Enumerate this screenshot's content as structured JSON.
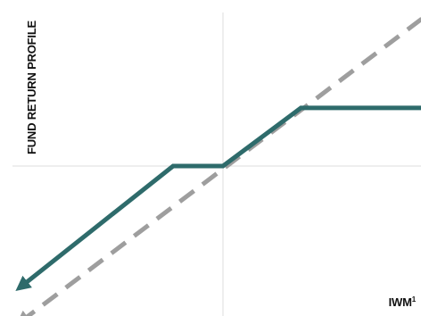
{
  "chart_data": {
    "type": "line",
    "title": "",
    "ylabel": "FUND RETURN PROFILE",
    "xlabel": "IWM",
    "xlabel_superscript": "1",
    "xlim": [
      -13.5,
      13.5
    ],
    "ylim": [
      -10,
      10
    ],
    "grid": false,
    "legend": "none",
    "axes_lines": {
      "x_at": 0,
      "y_at": 0,
      "color": "#dcdcdc"
    },
    "series": [
      {
        "style": "solid",
        "color": "#2e6b6b",
        "arrows": "both",
        "points": [
          [
            -13,
            -7.3
          ],
          [
            -3.2,
            0
          ],
          [
            0,
            0
          ],
          [
            5,
            3.5
          ],
          [
            13.5,
            3.5
          ]
        ]
      },
      {
        "style": "dashed",
        "color": "#9e9e9e",
        "arrows": "both",
        "points": [
          [
            -13,
            -9.4
          ],
          [
            13.5,
            9.4
          ]
        ]
      }
    ]
  }
}
